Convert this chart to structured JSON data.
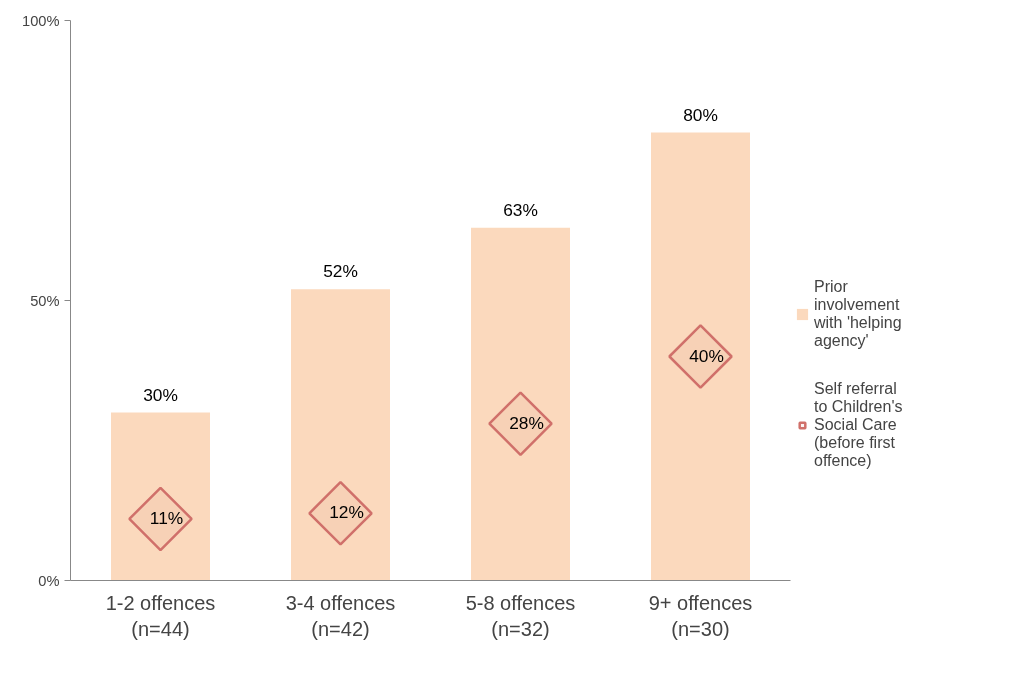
{
  "chart_data": {
    "type": "bar",
    "categories": [
      "1-2 offences (n=44)",
      "3-4 offences (n=42)",
      "5-8 offences (n=32)",
      "9+ offences (n=30)"
    ],
    "series": [
      {
        "name": "Prior involvement with 'helping agency'",
        "color": "#fbd9bd",
        "values": [
          30,
          52,
          63,
          80
        ],
        "value_labels": [
          "30%",
          "52%",
          "63%",
          "80%"
        ]
      },
      {
        "name": "Self referral to Children's Social Care (before first offence)",
        "type": "scatter",
        "marker": "diamond",
        "color": "#d0706a",
        "values": [
          11,
          12,
          28,
          40
        ],
        "value_labels": [
          "11%",
          "12%",
          "28%",
          "40%"
        ]
      }
    ],
    "ylim": [
      0,
      100
    ],
    "yticks": [
      {
        "value": 0,
        "label": "0%"
      },
      {
        "value": 50,
        "label": "50%"
      },
      {
        "value": 100,
        "label": "100%"
      }
    ],
    "grid": false,
    "legend": "right"
  }
}
